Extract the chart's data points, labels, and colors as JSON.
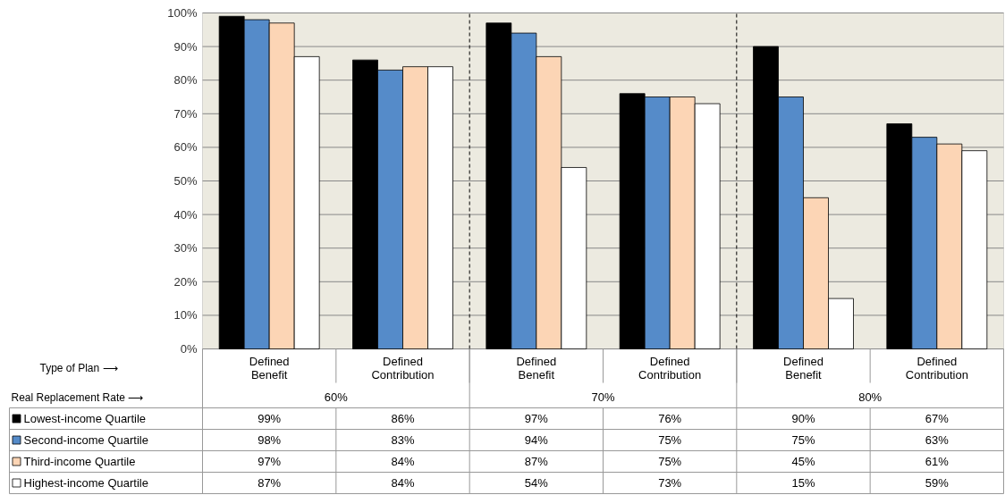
{
  "chart_data": {
    "type": "bar",
    "categories": [
      "Defined Benefit",
      "Defined Contribution",
      "Defined Benefit",
      "Defined Contribution",
      "Defined Benefit",
      "Defined Contribution"
    ],
    "series": [
      {
        "name": "Lowest-income Quartile",
        "color": "#000000",
        "values": [
          99,
          86,
          97,
          76,
          90,
          67
        ],
        "value_labels": [
          "99%",
          "86%",
          "97%",
          "76%",
          "90%",
          "67%"
        ]
      },
      {
        "name": "Second-income Quartile",
        "color": "#558bc9",
        "values": [
          98,
          83,
          94,
          75,
          75,
          63
        ],
        "value_labels": [
          "98%",
          "83%",
          "94%",
          "75%",
          "75%",
          "63%"
        ]
      },
      {
        "name": "Third-income Quartile",
        "color": "#fcd5b5",
        "values": [
          97,
          84,
          87,
          75,
          45,
          61
        ],
        "value_labels": [
          "97%",
          "84%",
          "87%",
          "75%",
          "45%",
          "61%"
        ]
      },
      {
        "name": "Highest-income Quartile",
        "color": "#ffffff",
        "values": [
          87,
          84,
          54,
          73,
          15,
          59
        ],
        "value_labels": [
          "87%",
          "84%",
          "54%",
          "73%",
          "15%",
          "59%"
        ]
      }
    ],
    "annotations": [
      "Type of Plan ⟶",
      "Real Replacement Rate ⟶",
      "60%",
      "70%",
      "80%"
    ],
    "ylim": [
      0,
      100
    ],
    "yticks": [
      {
        "value": 0,
        "label": "0%"
      },
      {
        "value": 10,
        "label": "10%"
      },
      {
        "value": 20,
        "label": "20%"
      },
      {
        "value": 30,
        "label": "30%"
      },
      {
        "value": 40,
        "label": "40%"
      },
      {
        "value": 50,
        "label": "50%"
      },
      {
        "value": 60,
        "label": "60%"
      },
      {
        "value": 70,
        "label": "70%"
      },
      {
        "value": 80,
        "label": "80%"
      },
      {
        "value": 90,
        "label": "90%"
      },
      {
        "value": 100,
        "label": "100%"
      }
    ],
    "grid": "y",
    "legend": "bottom left"
  }
}
